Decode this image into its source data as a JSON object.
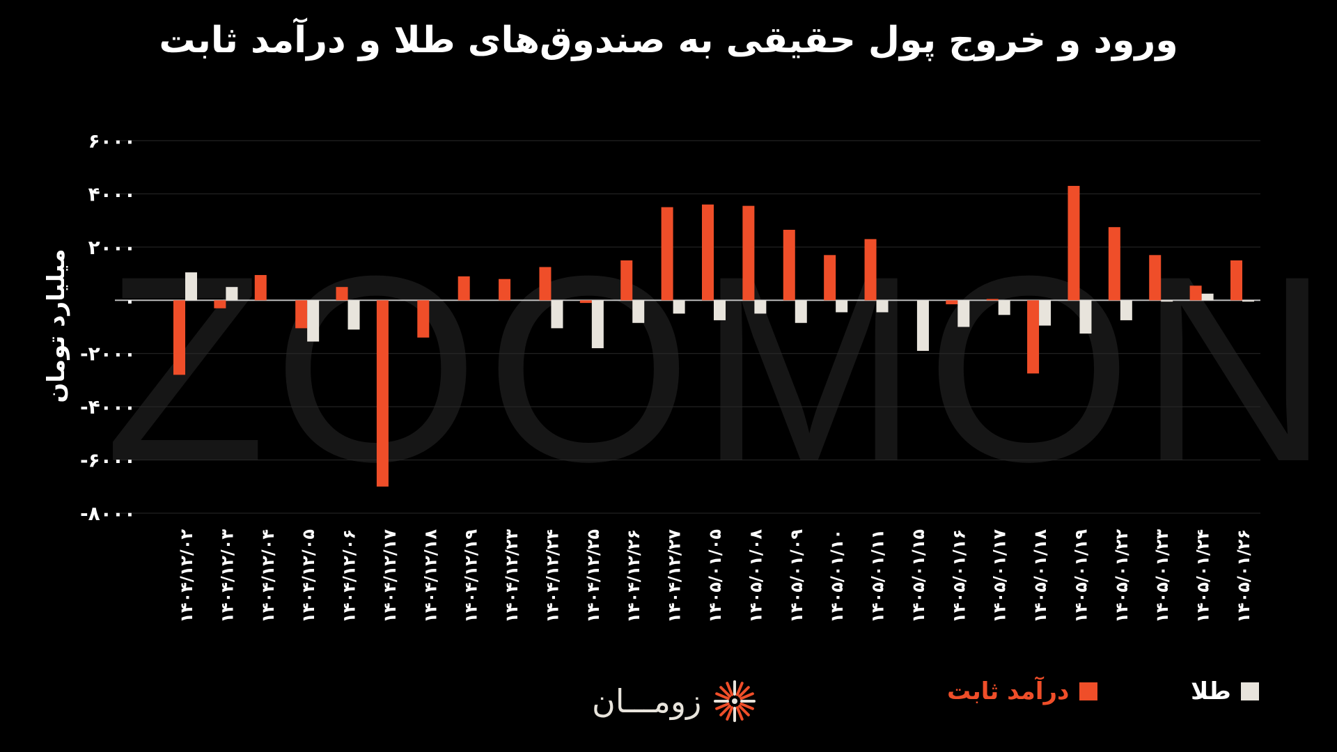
{
  "watermark": "ZOOMON",
  "chart_data": {
    "type": "bar",
    "title": "ورود و خروج پول حقیقی به صندوق‌های طلا و درآمد ثابت",
    "ylabel": "میلیارد تومان",
    "xlabel": "",
    "ylim": [
      -8000,
      6000
    ],
    "yticks": [
      6000,
      4000,
      2000,
      0,
      -2000,
      -4000,
      -6000,
      -8000
    ],
    "ytick_labels": [
      "۶۰۰۰",
      "۴۰۰۰",
      "۲۰۰۰",
      "۰",
      "-۲۰۰۰",
      "-۴۰۰۰",
      "-۶۰۰۰",
      "-۸۰۰۰"
    ],
    "grid": true,
    "legend_position": "bottom",
    "categories": [
      "۱۴۰۴/۱۲/۰۲",
      "۱۴۰۴/۱۲/۰۳",
      "۱۴۰۴/۱۲/۰۴",
      "۱۴۰۴/۱۲/۰۵",
      "۱۴۰۴/۱۲/۰۶",
      "۱۴۰۴/۱۲/۱۷",
      "۱۴۰۴/۱۲/۱۸",
      "۱۴۰۴/۱۲/۱۹",
      "۱۴۰۴/۱۲/۲۳",
      "۱۴۰۴/۱۲/۲۴",
      "۱۴۰۴/۱۲/۲۵",
      "۱۴۰۴/۱۲/۲۶",
      "۱۴۰۴/۱۲/۲۷",
      "۱۴۰۵/۰۱/۰۵",
      "۱۴۰۵/۰۱/۰۸",
      "۱۴۰۵/۰۱/۰۹",
      "۱۴۰۵/۰۱/۱۰",
      "۱۴۰۵/۰۱/۱۱",
      "۱۴۰۵/۰۱/۱۵",
      "۱۴۰۵/۰۱/۱۶",
      "۱۴۰۵/۰۱/۱۷",
      "۱۴۰۵/۰۱/۱۸",
      "۱۴۰۵/۰۱/۱۹",
      "۱۴۰۵/۰۱/۲۲",
      "۱۴۰۵/۰۱/۲۳",
      "۱۴۰۵/۰۱/۲۴",
      "۱۴۰۵/۰۱/۲۶"
    ],
    "series": [
      {
        "name": "درآمد ثابت",
        "color": "#ef4e29",
        "values": [
          -2800,
          -300,
          950,
          -1050,
          500,
          -7000,
          -1400,
          900,
          800,
          1250,
          -100,
          1500,
          3500,
          3600,
          3550,
          2650,
          1700,
          2300,
          0,
          -150,
          50,
          -2750,
          4300,
          2750,
          1700,
          550,
          1500
        ]
      },
      {
        "name": "طلا",
        "color": "#e8e4dc",
        "values": [
          1050,
          500,
          0,
          -1550,
          -1100,
          0,
          0,
          0,
          0,
          -1050,
          -1800,
          -850,
          -500,
          -750,
          -500,
          -850,
          -450,
          -450,
          -1900,
          -1000,
          -550,
          -950,
          -1250,
          -750,
          -50,
          250,
          -50
        ]
      }
    ]
  },
  "legend": {
    "gold_label": "طلا",
    "fixed_income_label": "درآمد ثابت"
  },
  "logo": {
    "text": "زومـــان",
    "icon": "sunburst-logo-icon"
  }
}
